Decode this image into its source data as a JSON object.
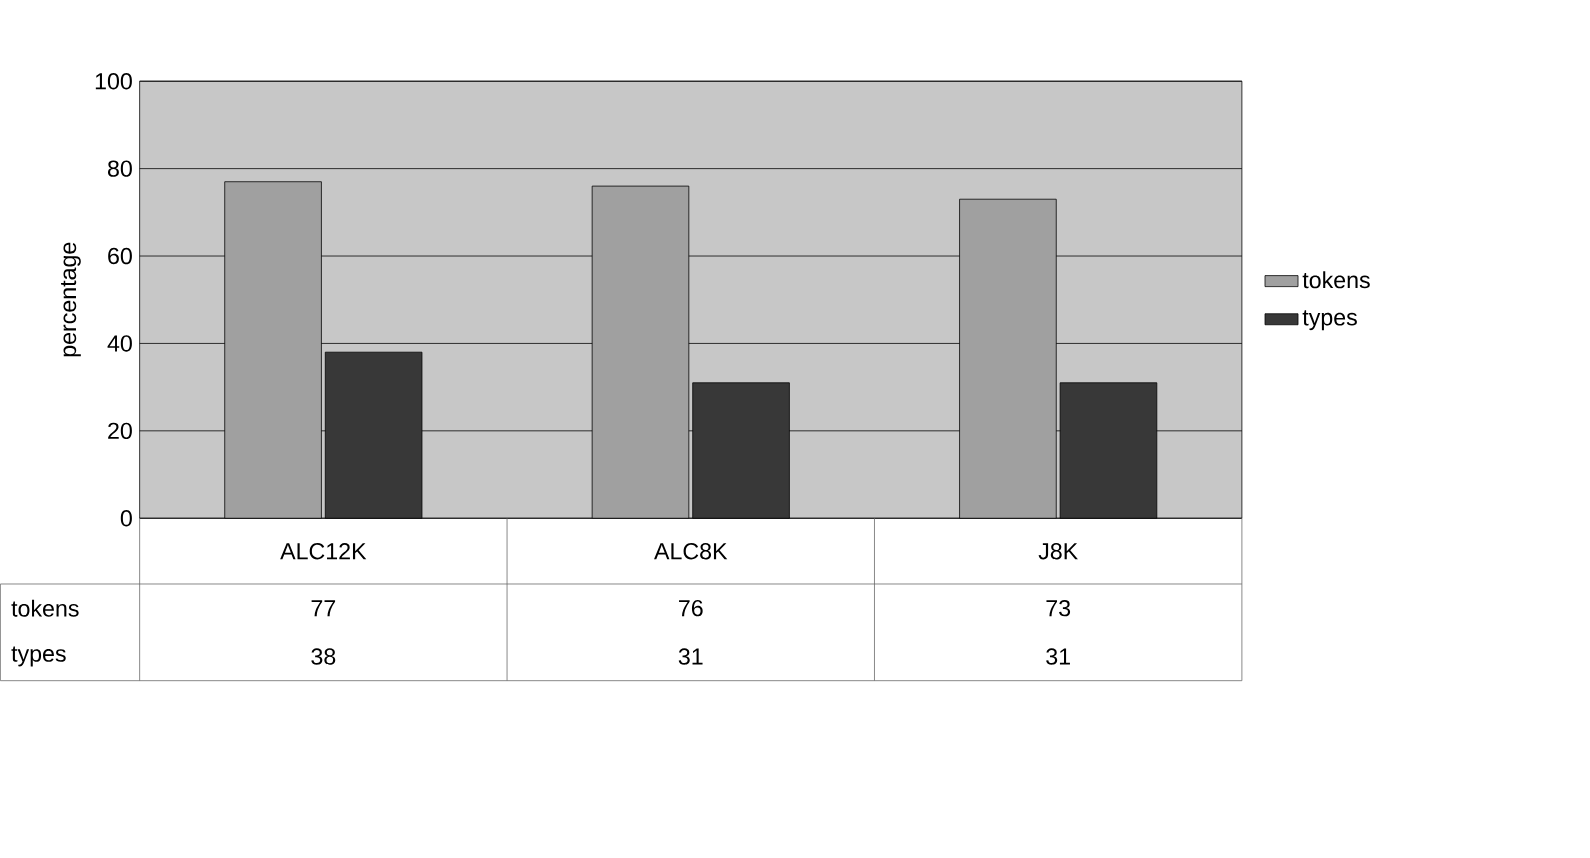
{
  "chart_data": {
    "type": "bar",
    "ylabel": "percentage",
    "categories": [
      "ALC12K",
      "ALC8K",
      "J8K"
    ],
    "series": [
      {
        "name": "tokens",
        "color": "#a0a0a0",
        "values": [
          77,
          76,
          73
        ]
      },
      {
        "name": "types",
        "color": "#383838",
        "values": [
          38,
          31,
          31
        ]
      }
    ],
    "ylim": [
      0,
      100
    ],
    "yticks": [
      0,
      20,
      40,
      60,
      80,
      100
    ],
    "grid": "y",
    "legend": "right",
    "data_labels": true
  }
}
